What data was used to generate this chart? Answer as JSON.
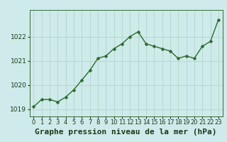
{
  "x": [
    0,
    1,
    2,
    3,
    4,
    5,
    6,
    7,
    8,
    9,
    10,
    11,
    12,
    13,
    14,
    15,
    16,
    17,
    18,
    19,
    20,
    21,
    22,
    23
  ],
  "y": [
    1019.1,
    1019.4,
    1019.4,
    1019.3,
    1019.5,
    1019.8,
    1020.2,
    1020.6,
    1021.1,
    1021.2,
    1021.5,
    1021.7,
    1022.0,
    1022.2,
    1021.7,
    1021.6,
    1021.5,
    1021.4,
    1021.1,
    1021.2,
    1021.1,
    1021.6,
    1021.8,
    1022.7
  ],
  "line_color": "#2d6a2d",
  "marker_color": "#2d6a2d",
  "bg_color": "#ceeaea",
  "grid_color": "#b0d8c8",
  "xlabel": "Graphe pression niveau de la mer (hPa)",
  "ylim": [
    1018.7,
    1023.1
  ],
  "xlim": [
    -0.5,
    23.5
  ],
  "yticks": [
    1019,
    1020,
    1021,
    1022
  ],
  "xtick_labels": [
    "0",
    "1",
    "2",
    "3",
    "4",
    "5",
    "6",
    "7",
    "8",
    "9",
    "10",
    "11",
    "12",
    "13",
    "14",
    "15",
    "16",
    "17",
    "18",
    "19",
    "20",
    "21",
    "22",
    "23"
  ],
  "xlabel_fontsize": 8,
  "tick_fontsize": 6.5,
  "marker_size": 2.5,
  "line_width": 1.0
}
